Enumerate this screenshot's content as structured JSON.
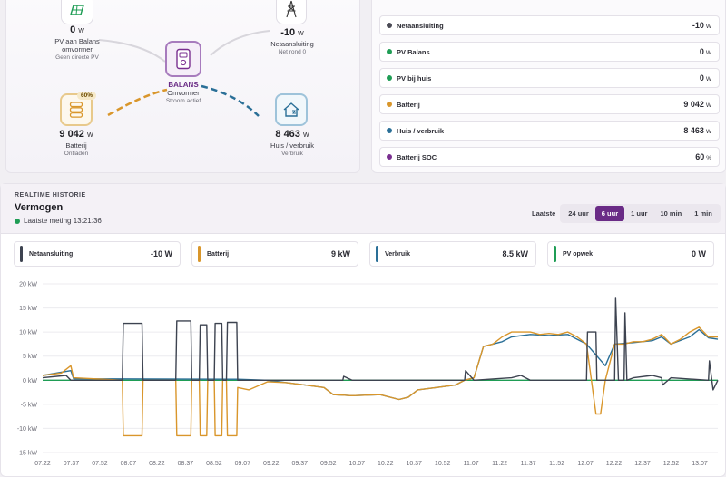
{
  "flow": {
    "pv": {
      "value": "0",
      "unit": "W",
      "label": "PV aan Balans omvormer",
      "sub": "Geen directe PV"
    },
    "net": {
      "value": "-10",
      "unit": "W",
      "label": "Netaansluiting",
      "sub": "Net rond 0"
    },
    "inverter": {
      "name": "BALANS",
      "label": "Omvormer",
      "sub": "Stroom actief"
    },
    "battery": {
      "value": "9 042",
      "unit": "W",
      "label": "Batterij",
      "sub": "Ontladen",
      "soc": "60%"
    },
    "house": {
      "value": "8 463",
      "unit": "W",
      "label": "Huis / verbruik",
      "sub": "Verbruik"
    }
  },
  "metrics": [
    {
      "label": "Netaansluiting",
      "value": "-10",
      "unit": "W",
      "color": "#4a4a55"
    },
    {
      "label": "PV Balans",
      "value": "0",
      "unit": "W",
      "color": "#1f9d55"
    },
    {
      "label": "PV bij huis",
      "value": "0",
      "unit": "W",
      "color": "#1f9d55"
    },
    {
      "label": "Batterij",
      "value": "9 042",
      "unit": "W",
      "color": "#d9962b"
    },
    {
      "label": "Huis / verbruik",
      "value": "8 463",
      "unit": "W",
      "color": "#2a6f97"
    },
    {
      "label": "Batterij SOC",
      "value": "60",
      "unit": "%",
      "color": "#7a2f90"
    }
  ],
  "history": {
    "section": "REALTIME HISTORIE",
    "title": "Vermogen",
    "last_measure": "Laatste meting 13:21:36",
    "range_label": "Laatste",
    "ranges": [
      "24 uur",
      "6 uur",
      "1 uur",
      "10 min",
      "1 min"
    ],
    "active_range": "6 uur"
  },
  "legend": [
    {
      "label": "Netaansluiting",
      "value": "-10 W",
      "color": "#3d4350"
    },
    {
      "label": "Batterij",
      "value": "9 kW",
      "color": "#d9962b"
    },
    {
      "label": "Verbruik",
      "value": "8.5 kW",
      "color": "#2a6f97"
    },
    {
      "label": "PV opwek",
      "value": "0 W",
      "color": "#1f9d55"
    }
  ],
  "colors": {
    "accent": "#6a2b86",
    "net": "#3d4350",
    "battery": "#d9962b",
    "house": "#2a6f97",
    "pv": "#1f9d55"
  },
  "chart_data": {
    "type": "line",
    "y_ticks": [
      "20 kW",
      "15 kW",
      "10 kW",
      "5 kW",
      "0 kW",
      "-5 kW",
      "-10 kW",
      "-15 kW"
    ],
    "ylim": [
      -15,
      20
    ],
    "x_ticks": [
      "07:22",
      "07:37",
      "07:52",
      "08:07",
      "08:22",
      "08:37",
      "08:52",
      "09:07",
      "09:22",
      "09:37",
      "09:52",
      "10:07",
      "10:22",
      "10:37",
      "10:52",
      "11:07",
      "11:22",
      "11:37",
      "11:52",
      "12:07",
      "12:22",
      "12:37",
      "12:52",
      "13:07"
    ],
    "series": [
      {
        "name": "Netaansluiting",
        "color": "#3d4350",
        "points": [
          [
            0,
            0.5
          ],
          [
            2.5,
            1
          ],
          [
            3,
            0
          ],
          [
            8.5,
            0
          ],
          [
            8.6,
            11.8
          ],
          [
            10.6,
            11.8
          ],
          [
            10.7,
            0
          ],
          [
            14.2,
            0
          ],
          [
            14.3,
            12.3
          ],
          [
            15.8,
            12.3
          ],
          [
            15.9,
            0
          ],
          [
            16.7,
            0
          ],
          [
            16.8,
            11.5
          ],
          [
            17.5,
            11.5
          ],
          [
            17.6,
            0
          ],
          [
            18.3,
            0
          ],
          [
            18.4,
            11.8
          ],
          [
            19.1,
            11.8
          ],
          [
            19.2,
            0
          ],
          [
            19.6,
            0
          ],
          [
            19.7,
            12
          ],
          [
            20.7,
            12
          ],
          [
            20.8,
            0
          ],
          [
            32,
            0
          ],
          [
            32.1,
            0.8
          ],
          [
            33,
            0
          ],
          [
            45,
            0
          ],
          [
            45.1,
            2
          ],
          [
            46,
            0
          ],
          [
            50,
            0.5
          ],
          [
            51,
            1
          ],
          [
            52,
            0
          ],
          [
            58,
            0
          ],
          [
            58.1,
            10
          ],
          [
            59,
            10
          ],
          [
            59.1,
            0
          ],
          [
            61,
            0
          ],
          [
            61.1,
            17
          ],
          [
            61.4,
            0
          ],
          [
            62,
            0
          ],
          [
            62.1,
            14
          ],
          [
            62.3,
            0
          ],
          [
            63,
            0.5
          ],
          [
            65,
            1
          ],
          [
            66,
            0.5
          ],
          [
            66.1,
            -1
          ],
          [
            67,
            0.5
          ],
          [
            71,
            0
          ],
          [
            71.1,
            4
          ],
          [
            71.5,
            -2
          ],
          [
            72,
            0
          ]
        ]
      },
      {
        "name": "Batterij",
        "color": "#d9962b",
        "points": [
          [
            0,
            1
          ],
          [
            2,
            1.5
          ],
          [
            3,
            3
          ],
          [
            3.3,
            0.5
          ],
          [
            8.5,
            0
          ],
          [
            8.6,
            -11.5
          ],
          [
            10.6,
            -11.5
          ],
          [
            10.7,
            0
          ],
          [
            14.2,
            0
          ],
          [
            14.3,
            -11.5
          ],
          [
            15.8,
            -11.5
          ],
          [
            15.9,
            0
          ],
          [
            16.7,
            0
          ],
          [
            16.8,
            -11.5
          ],
          [
            17.5,
            -11.5
          ],
          [
            17.6,
            0
          ],
          [
            18.3,
            0
          ],
          [
            18.4,
            -11.5
          ],
          [
            19.1,
            -11.5
          ],
          [
            19.2,
            0
          ],
          [
            19.6,
            0
          ],
          [
            19.7,
            -11.5
          ],
          [
            20.7,
            -11.5
          ],
          [
            20.8,
            -1.5
          ],
          [
            22,
            -2
          ],
          [
            24,
            -0.3
          ],
          [
            26,
            -0.5
          ],
          [
            28,
            -1
          ],
          [
            30,
            -1.5
          ],
          [
            31,
            -3
          ],
          [
            33,
            -3.2
          ],
          [
            36,
            -3
          ],
          [
            38,
            -4
          ],
          [
            39,
            -3.5
          ],
          [
            40,
            -2
          ],
          [
            42,
            -1.5
          ],
          [
            44,
            -1
          ],
          [
            45,
            0
          ],
          [
            46,
            0.5
          ],
          [
            47,
            7
          ],
          [
            48,
            7.5
          ],
          [
            49,
            9
          ],
          [
            50,
            10
          ],
          [
            52,
            10
          ],
          [
            53,
            9.5
          ],
          [
            54,
            9.7
          ],
          [
            55,
            9.5
          ],
          [
            56,
            10
          ],
          [
            57,
            9
          ],
          [
            58,
            7.5
          ],
          [
            59,
            -7
          ],
          [
            59.5,
            -7
          ],
          [
            60,
            0
          ],
          [
            61,
            7.5
          ],
          [
            62,
            7.5
          ],
          [
            63,
            8
          ],
          [
            64,
            8
          ],
          [
            65,
            8.5
          ],
          [
            66,
            9.5
          ],
          [
            67,
            7.5
          ],
          [
            68,
            8.5
          ],
          [
            69,
            10
          ],
          [
            70,
            11
          ],
          [
            71,
            9
          ],
          [
            72,
            9
          ]
        ]
      },
      {
        "name": "Verbruik",
        "color": "#2a6f97",
        "points": [
          [
            0,
            1
          ],
          [
            3,
            2
          ],
          [
            3.3,
            0.3
          ],
          [
            20.8,
            0.2
          ],
          [
            24,
            0
          ],
          [
            28,
            -1
          ],
          [
            30,
            -1.5
          ],
          [
            31,
            -3
          ],
          [
            33,
            -3.2
          ],
          [
            36,
            -3
          ],
          [
            38,
            -4
          ],
          [
            39,
            -3.5
          ],
          [
            40,
            -2
          ],
          [
            42,
            -1.5
          ],
          [
            44,
            -1
          ],
          [
            45,
            0
          ],
          [
            46,
            0.5
          ],
          [
            47,
            7
          ],
          [
            49,
            8
          ],
          [
            50,
            9
          ],
          [
            52,
            9.5
          ],
          [
            54,
            9.3
          ],
          [
            56,
            9.5
          ],
          [
            57,
            8.5
          ],
          [
            58,
            7.5
          ],
          [
            60,
            3
          ],
          [
            61,
            7.5
          ],
          [
            63,
            7.8
          ],
          [
            65,
            8.2
          ],
          [
            66,
            9
          ],
          [
            67,
            7.5
          ],
          [
            69,
            9
          ],
          [
            70,
            10.5
          ],
          [
            71,
            8.8
          ],
          [
            72,
            8.5
          ]
        ]
      },
      {
        "name": "PV opwek",
        "color": "#1f9d55",
        "points": [
          [
            0,
            0
          ],
          [
            72,
            0
          ]
        ]
      }
    ]
  }
}
